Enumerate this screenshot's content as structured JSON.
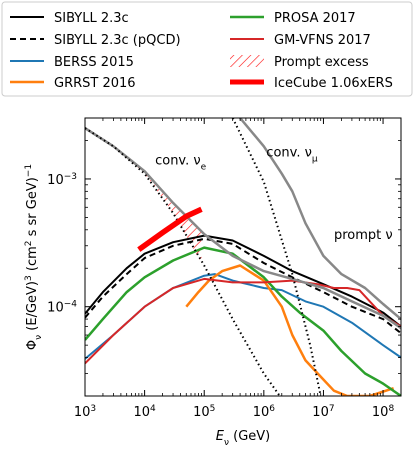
{
  "chart_data": {
    "type": "line",
    "xscale": "log",
    "yscale": "log",
    "xlim": [
      1000,
      200000000
    ],
    "ylim": [
      2e-05,
      0.003
    ],
    "xlabel": "E_ν (GeV)",
    "ylabel": "Φ_ν (E/GeV)³ (cm² s sr GeV)⁻¹",
    "x_ticks": [
      {
        "value": 1000,
        "base": "10",
        "exp": "3"
      },
      {
        "value": 10000,
        "base": "10",
        "exp": "4"
      },
      {
        "value": 100000,
        "base": "10",
        "exp": "5"
      },
      {
        "value": 1000000,
        "base": "10",
        "exp": "6"
      },
      {
        "value": 10000000,
        "base": "10",
        "exp": "7"
      },
      {
        "value": 100000000,
        "base": "10",
        "exp": "8"
      }
    ],
    "y_ticks": [
      {
        "value": 0.001,
        "base": "10",
        "exp": "−3"
      },
      {
        "value": 0.0001,
        "base": "10",
        "exp": "−4"
      }
    ],
    "legend_placement": "top",
    "legend": [
      {
        "label": "SIBYLL 2.3c",
        "color": "#000000",
        "style": "solid",
        "width": 2,
        "col": 0,
        "row": 0
      },
      {
        "label": "SIBYLL 2.3c (pQCD)",
        "color": "#000000",
        "style": "dashed",
        "width": 2,
        "col": 0,
        "row": 1
      },
      {
        "label": "BERSS 2015",
        "color": "#1f77b4",
        "style": "solid",
        "width": 2,
        "col": 0,
        "row": 2
      },
      {
        "label": "GRRST 2016",
        "color": "#ff7f0e",
        "style": "solid",
        "width": 2.5,
        "col": 0,
        "row": 3
      },
      {
        "label": "PROSA 2017",
        "color": "#2ca02c",
        "style": "solid",
        "width": 2.5,
        "col": 1,
        "row": 0
      },
      {
        "label": "GM-VFNS 2017",
        "color": "#d62728",
        "style": "solid",
        "width": 2,
        "col": 1,
        "row": 1
      },
      {
        "label": "Prompt excess",
        "color": "#ff0000",
        "style": "hatch",
        "width": 1,
        "col": 1,
        "row": 2
      },
      {
        "label": "IceCube 1.06xERS",
        "color": "#ff0000",
        "style": "solid",
        "width": 5,
        "col": 1,
        "row": 3
      }
    ],
    "annotations": [
      {
        "text": "conv. ν",
        "sub": "e",
        "x": 15000,
        "y": 0.0013
      },
      {
        "text": "conv. ν",
        "sub": "μ",
        "x": 1100000,
        "y": 0.0015
      },
      {
        "text": "prompt ν",
        "sub": "",
        "x": 15000000,
        "y": 0.00034
      }
    ],
    "series": [
      {
        "key": "sibyll",
        "color": "#000000",
        "width": 2,
        "dash": "",
        "points": [
          [
            1000,
            8.8e-05
          ],
          [
            2000,
            0.00013
          ],
          [
            5000,
            0.0002
          ],
          [
            10000,
            0.00026
          ],
          [
            30000,
            0.00032
          ],
          [
            100000,
            0.00036
          ],
          [
            300000,
            0.00033
          ],
          [
            1000000,
            0.00025
          ],
          [
            3000000,
            0.00019
          ],
          [
            10000000,
            0.00015
          ],
          [
            30000000,
            0.00012
          ],
          [
            100000000,
            9e-05
          ],
          [
            200000000,
            7e-05
          ]
        ]
      },
      {
        "key": "sibyll_pqcd",
        "color": "#000000",
        "width": 2,
        "dash": "6,4",
        "points": [
          [
            1000,
            8.2e-05
          ],
          [
            2000,
            0.00012
          ],
          [
            5000,
            0.00018
          ],
          [
            10000,
            0.00024
          ],
          [
            30000,
            0.0003
          ],
          [
            100000,
            0.00034
          ],
          [
            300000,
            0.00031
          ],
          [
            1000000,
            0.00022
          ],
          [
            3000000,
            0.00017
          ],
          [
            10000000,
            0.00013
          ],
          [
            30000000,
            0.0001
          ],
          [
            100000000,
            8e-05
          ],
          [
            200000000,
            6.2e-05
          ]
        ]
      },
      {
        "key": "berss",
        "color": "#1f77b4",
        "width": 2,
        "dash": "",
        "points": [
          [
            1000,
            3.9e-05
          ],
          [
            3000,
            6e-05
          ],
          [
            10000,
            0.0001
          ],
          [
            30000,
            0.00014
          ],
          [
            100000,
            0.000175
          ],
          [
            150000,
            0.00018
          ],
          [
            300000,
            0.00016
          ],
          [
            1000000,
            0.00014
          ],
          [
            2000000,
            0.000135
          ],
          [
            5000000,
            0.00011
          ],
          [
            10000000,
            0.0001
          ],
          [
            30000000,
            7.5e-05
          ],
          [
            100000000,
            5e-05
          ],
          [
            200000000,
            4e-05
          ]
        ]
      },
      {
        "key": "grrst",
        "color": "#ff7f0e",
        "width": 2.5,
        "dash": "",
        "points": [
          [
            50000,
            0.0001
          ],
          [
            80000,
            0.00013
          ],
          [
            120000,
            0.00016
          ],
          [
            200000,
            0.00019
          ],
          [
            400000,
            0.00021
          ],
          [
            1000000,
            0.00016
          ],
          [
            2000000,
            0.0001
          ],
          [
            3000000,
            6e-05
          ],
          [
            5000000,
            3.8e-05
          ],
          [
            8000000,
            3e-05
          ],
          [
            15000000,
            2.2e-05
          ],
          [
            25000000,
            2e-05
          ],
          [
            60000000,
            2e-05
          ],
          [
            150000000,
            2.3e-05
          ]
        ]
      },
      {
        "key": "prosa",
        "color": "#2ca02c",
        "width": 2.5,
        "dash": "",
        "points": [
          [
            1000,
            5.5e-05
          ],
          [
            2000,
            8e-05
          ],
          [
            5000,
            0.00013
          ],
          [
            10000,
            0.00017
          ],
          [
            30000,
            0.00023
          ],
          [
            100000,
            0.00029
          ],
          [
            300000,
            0.00026
          ],
          [
            1000000,
            0.00017
          ],
          [
            2000000,
            0.00012
          ],
          [
            4000000,
            9e-05
          ],
          [
            10000000,
            6.5e-05
          ],
          [
            20000000,
            4.5e-05
          ],
          [
            50000000,
            3e-05
          ],
          [
            100000000,
            2.5e-05
          ],
          [
            200000000,
            2e-05
          ]
        ]
      },
      {
        "key": "gmvfns",
        "color": "#d62728",
        "width": 2,
        "dash": "",
        "points": [
          [
            1000,
            3.6e-05
          ],
          [
            3000,
            6e-05
          ],
          [
            10000,
            0.0001
          ],
          [
            30000,
            0.00014
          ],
          [
            100000,
            0.000165
          ],
          [
            300000,
            0.000155
          ],
          [
            1000000,
            0.000155
          ],
          [
            3000000,
            0.00016
          ],
          [
            8000000,
            0.00015
          ],
          [
            15000000,
            0.00014
          ],
          [
            25000000,
            0.00014
          ],
          [
            40000000,
            0.000135
          ],
          [
            60000000,
            0.00011
          ],
          [
            100000000,
            8.5e-05
          ],
          [
            200000000,
            7e-05
          ]
        ]
      },
      {
        "key": "conv_nue_sibyll",
        "color": "#888888",
        "width": 2.5,
        "dash": "",
        "points": [
          [
            1000,
            0.0025
          ],
          [
            3000,
            0.0018
          ],
          [
            10000,
            0.00115
          ],
          [
            30000,
            0.00065
          ],
          [
            100000,
            0.00037
          ],
          [
            300000,
            0.00025
          ],
          [
            1000000,
            0.00019
          ],
          [
            3000000,
            0.000165
          ],
          [
            10000000,
            0.00014
          ],
          [
            30000000,
            0.00011
          ],
          [
            100000000,
            8.5e-05
          ],
          [
            200000000,
            6.8e-05
          ]
        ]
      },
      {
        "key": "conv_numu_sibyll",
        "color": "#888888",
        "width": 2.5,
        "dash": "",
        "points": [
          [
            400000,
            0.003
          ],
          [
            1000000,
            0.0018
          ],
          [
            2000000,
            0.0011
          ],
          [
            3000000,
            0.0008
          ],
          [
            5000000,
            0.00045
          ],
          [
            10000000,
            0.00025
          ],
          [
            20000000,
            0.00018
          ],
          [
            50000000,
            0.00014
          ],
          [
            100000000,
            0.000105
          ],
          [
            200000000,
            8e-05
          ]
        ]
      },
      {
        "key": "conv_nue",
        "color": "#000000",
        "width": 2,
        "dash": "1.5,3",
        "points": [
          [
            1000,
            0.0025
          ],
          [
            3000,
            0.0018
          ],
          [
            10000,
            0.0011
          ],
          [
            30000,
            0.00054
          ],
          [
            100000,
            0.00021
          ],
          [
            300000,
            8e-05
          ],
          [
            1000000,
            3e-05
          ],
          [
            2000000,
            1.9e-05
          ]
        ]
      },
      {
        "key": "conv_numu",
        "color": "#000000",
        "width": 2,
        "dash": "1.5,3",
        "points": [
          [
            300000,
            0.003
          ],
          [
            1000000,
            0.00095
          ],
          [
            3000000,
            0.00018
          ],
          [
            6000000,
            5e-05
          ],
          [
            9000000,
            2e-05
          ]
        ]
      },
      {
        "key": "icecube",
        "color": "#ff0000",
        "width": 5.5,
        "dash": "",
        "points": [
          [
            8000,
            0.00028
          ],
          [
            20000,
            0.00038
          ],
          [
            50000,
            0.00051
          ],
          [
            90000,
            0.00058
          ]
        ]
      }
    ],
    "prompt_excess": {
      "color": "#ff0000",
      "upper": [
        [
          1000,
          0.0025
        ],
        [
          3000,
          0.0018
        ],
        [
          10000,
          0.00115
        ],
        [
          30000,
          0.00065
        ],
        [
          90000,
          0.0004
        ]
      ],
      "lower": [
        [
          1000,
          0.0025
        ],
        [
          3000,
          0.0018
        ],
        [
          10000,
          0.0011
        ],
        [
          30000,
          0.00054
        ],
        [
          90000,
          0.00022
        ]
      ]
    }
  }
}
